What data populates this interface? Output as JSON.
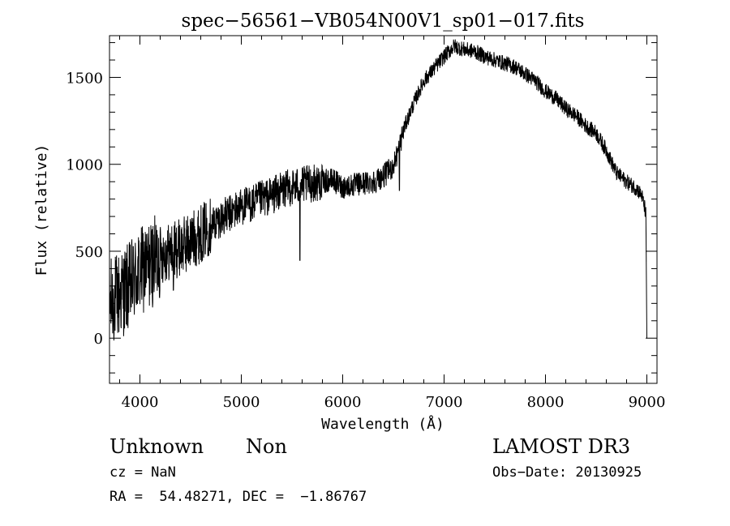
{
  "chart_data": {
    "type": "line",
    "title": "spec−56561−VB054N00V1_sp01−017.fits",
    "xlabel": "Wavelength (Å)",
    "ylabel": "Flux (relative)",
    "xlim": [
      3700,
      9100
    ],
    "ylim": [
      -260,
      1740
    ],
    "xticks": [
      4000,
      5000,
      6000,
      7000,
      8000,
      9000
    ],
    "yticks": [
      0,
      500,
      1000,
      1500
    ],
    "grid": false,
    "series": [
      {
        "name": "flux",
        "x": [
          3700,
          3800,
          3900,
          4000,
          4100,
          4200,
          4300,
          4400,
          4500,
          4600,
          4700,
          4800,
          4900,
          5000,
          5100,
          5200,
          5300,
          5400,
          5500,
          5600,
          5700,
          5800,
          5900,
          6000,
          6100,
          6200,
          6300,
          6400,
          6500,
          6560,
          6600,
          6700,
          6800,
          6900,
          7000,
          7100,
          7200,
          7300,
          7400,
          7500,
          7600,
          7700,
          7800,
          7900,
          8000,
          8100,
          8200,
          8300,
          8400,
          8500,
          8600,
          8700,
          8800,
          8900,
          8950,
          8990,
          9000
        ],
        "y": [
          200,
          250,
          300,
          380,
          420,
          480,
          500,
          520,
          560,
          600,
          650,
          690,
          720,
          760,
          770,
          800,
          820,
          850,
          870,
          880,
          890,
          900,
          910,
          870,
          880,
          890,
          900,
          930,
          990,
          1100,
          1200,
          1350,
          1480,
          1550,
          1620,
          1680,
          1660,
          1650,
          1620,
          1600,
          1580,
          1560,
          1520,
          1480,
          1420,
          1380,
          1320,
          1280,
          1220,
          1180,
          1080,
          950,
          900,
          860,
          820,
          720,
          0
        ]
      }
    ]
  },
  "info": {
    "object_class": "Unknown",
    "subclass": "Non",
    "survey": "LAMOST DR3",
    "redshift": "cz = NaN",
    "obs_date": "Obs−Date: 20130925",
    "coordinates": "RA =  54.48271, DEC =  −1.86767"
  }
}
